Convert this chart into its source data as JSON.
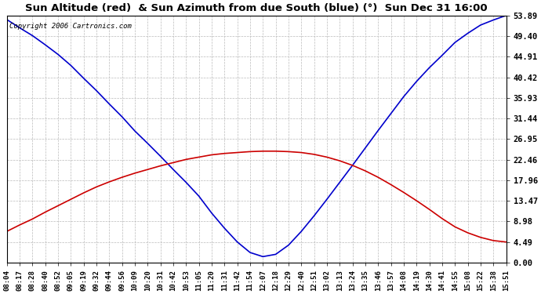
{
  "title": "Sun Altitude (red)  & Sun Azimuth from due South (blue) (°)  Sun Dec 31 16:00",
  "copyright": "Copyright 2006 Cartronics.com",
  "yticks": [
    0.0,
    4.49,
    8.98,
    13.47,
    17.96,
    22.46,
    26.95,
    31.44,
    35.93,
    40.42,
    44.91,
    49.4,
    53.89
  ],
  "ymax": 53.89,
  "ymin": 0.0,
  "bg_color": "#ffffff",
  "grid_color": "#bbbbbb",
  "plot_bg": "#ffffff",
  "blue_color": "#0000cc",
  "red_color": "#cc0000",
  "line_width": 1.2,
  "x_labels": [
    "08:04",
    "08:17",
    "08:28",
    "08:40",
    "08:52",
    "09:05",
    "09:19",
    "09:32",
    "09:44",
    "09:56",
    "10:09",
    "10:20",
    "10:31",
    "10:42",
    "10:53",
    "11:05",
    "11:20",
    "11:31",
    "11:42",
    "11:54",
    "12:07",
    "12:18",
    "12:29",
    "12:40",
    "12:51",
    "13:02",
    "13:13",
    "13:24",
    "13:35",
    "13:46",
    "13:57",
    "14:08",
    "14:19",
    "14:30",
    "14:41",
    "14:55",
    "15:08",
    "15:22",
    "15:38",
    "15:51"
  ],
  "blue_y": [
    53.0,
    51.2,
    49.5,
    47.5,
    45.4,
    43.0,
    40.2,
    37.5,
    34.6,
    31.8,
    28.7,
    26.0,
    23.2,
    20.3,
    17.5,
    14.5,
    10.8,
    7.5,
    4.5,
    2.2,
    1.3,
    1.8,
    3.8,
    6.8,
    10.2,
    13.8,
    17.5,
    21.2,
    25.0,
    28.8,
    32.5,
    36.2,
    39.5,
    42.5,
    45.2,
    48.0,
    50.0,
    51.8,
    52.9,
    53.89
  ],
  "red_y": [
    6.8,
    8.2,
    9.5,
    11.0,
    12.4,
    13.8,
    15.2,
    16.5,
    17.6,
    18.6,
    19.5,
    20.3,
    21.1,
    21.8,
    22.5,
    23.0,
    23.5,
    23.8,
    24.0,
    24.2,
    24.3,
    24.3,
    24.2,
    24.0,
    23.6,
    23.0,
    22.2,
    21.2,
    20.0,
    18.6,
    17.0,
    15.3,
    13.5,
    11.6,
    9.6,
    7.8,
    6.5,
    5.5,
    4.8,
    4.49
  ]
}
